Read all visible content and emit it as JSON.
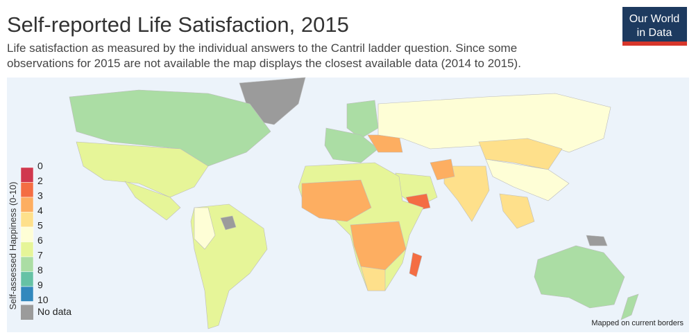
{
  "header": {
    "title": "Self-reported Life Satisfaction, 2015",
    "subtitle_lines": [
      "Life satisfaction as measured by the individual answers to the Cantril ladder question. Since some",
      "observations for 2015 are not available the map displays the closest available data (2014 to 2015)."
    ],
    "logo_lines": [
      "Our World",
      "in Data"
    ]
  },
  "legend": {
    "title": "Self-assessed Happiness (0-10)",
    "ticks": [
      0,
      2,
      3,
      4,
      5,
      6,
      7,
      8,
      9,
      10
    ],
    "colors": [
      "#d0384e",
      "#f46d43",
      "#fdae61",
      "#fee08b",
      "#fefed6",
      "#e6f598",
      "#abdda4",
      "#66c2a5",
      "#3288bd"
    ],
    "no_data_label": "No data",
    "no_data_color": "#9b9b9b"
  },
  "footer": {
    "note": "Mapped on current borders"
  }
}
